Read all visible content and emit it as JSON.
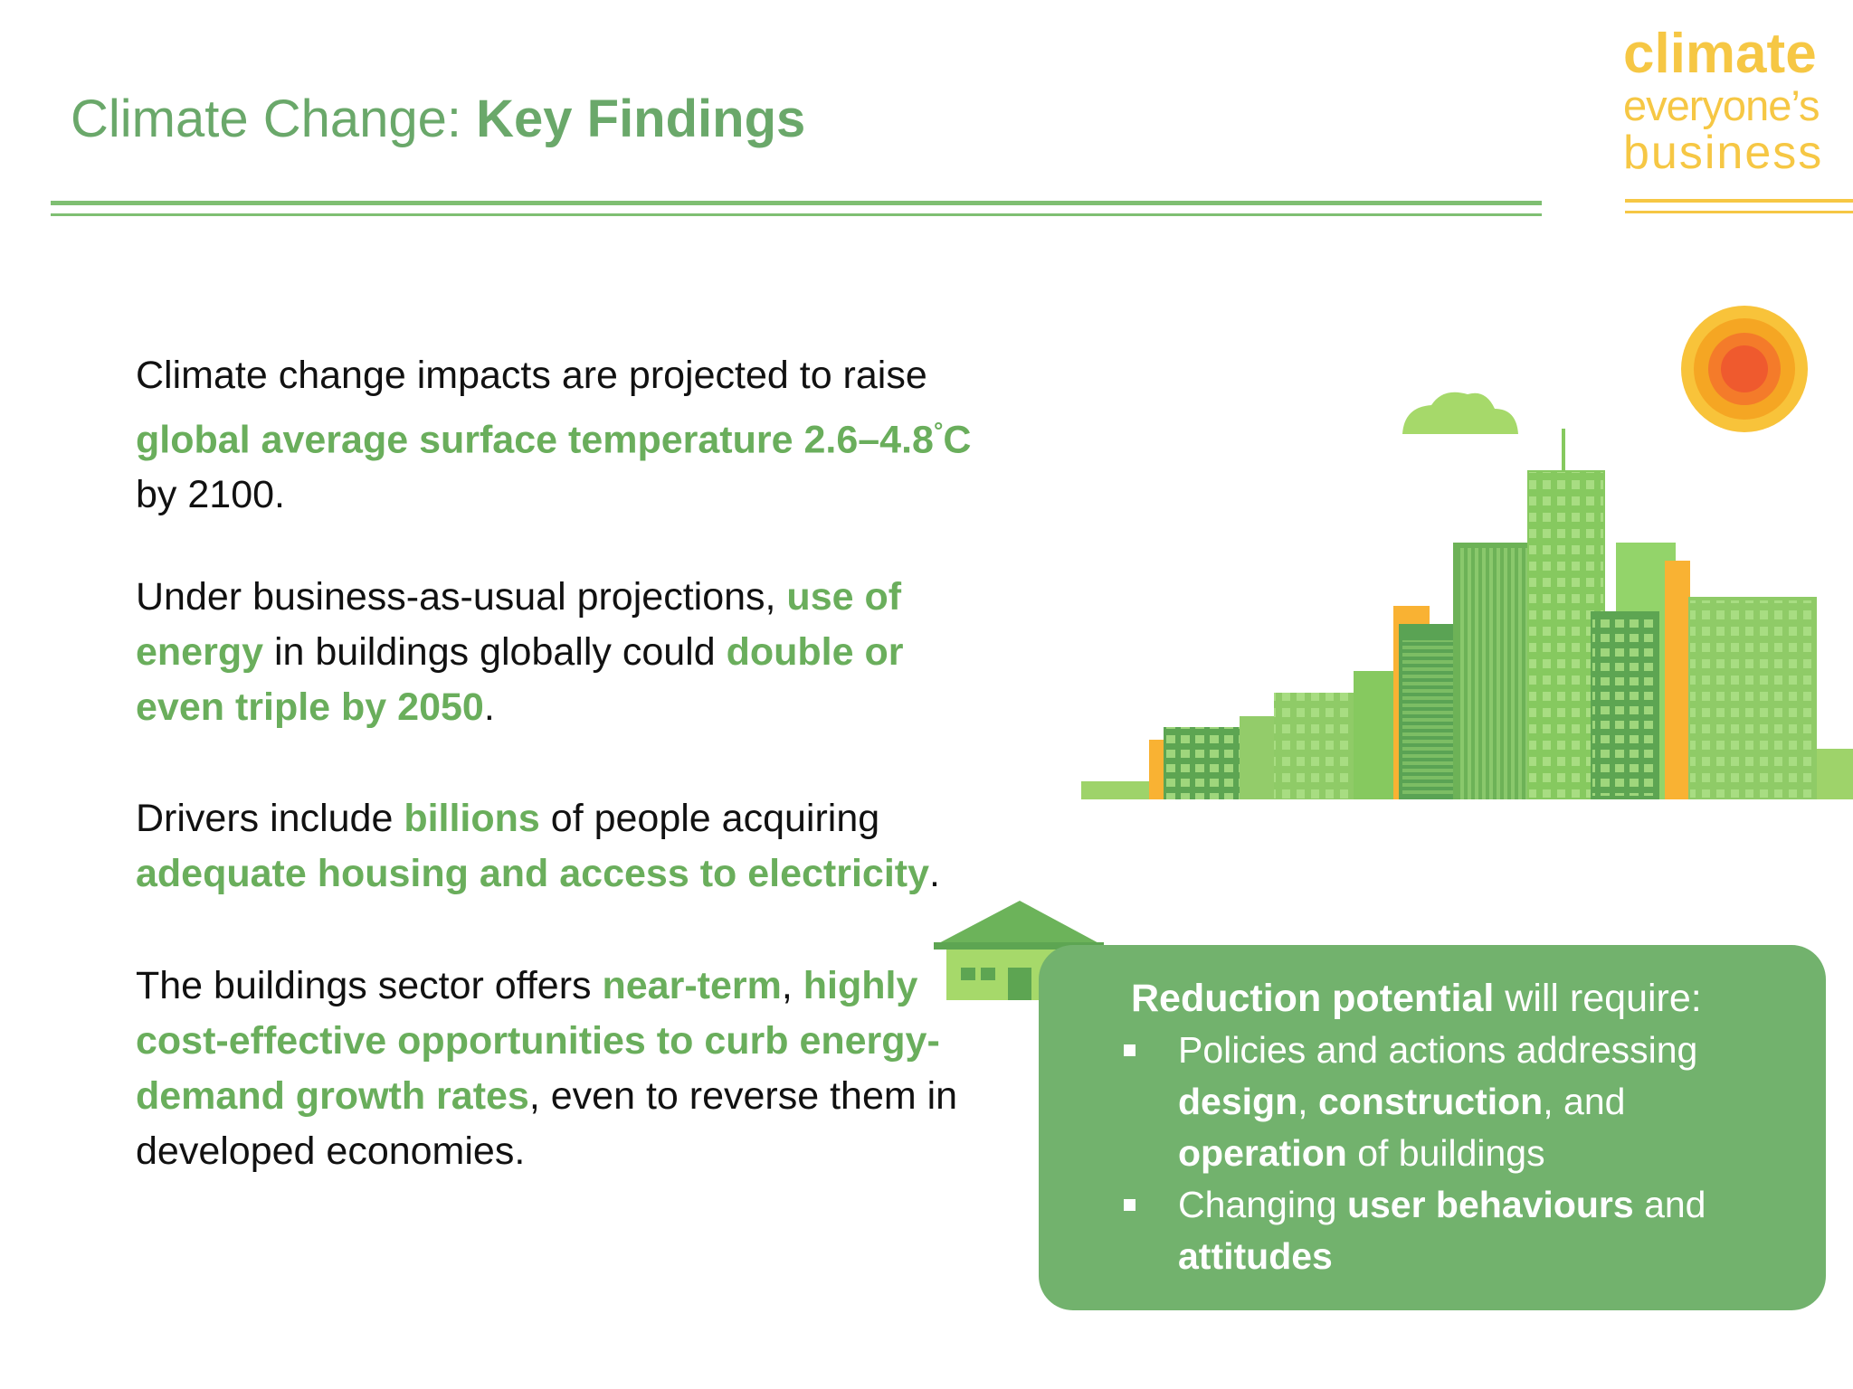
{
  "header": {
    "title_prefix": "Climate Change: ",
    "title_bold": "Key Findings"
  },
  "logo": {
    "line1": "climate",
    "line2": "everyone’s",
    "line3": "business"
  },
  "paragraphs": {
    "p1": {
      "a": "Climate change impacts are projected to raise ",
      "b": "global average surface temperature 2.6–4.8",
      "deg": "°",
      "c": "C",
      "d": " by 2100."
    },
    "p2": {
      "a": "Under business-as-usual projections, ",
      "b": "use of energy",
      "c": " in buildings globally could ",
      "d": "double or even triple by 2050",
      "e": "."
    },
    "p3": {
      "a": "Drivers include ",
      "b": "billions",
      "c": " of people acquiring ",
      "d": "adequate housing and access to electricity",
      "e": "."
    },
    "p4": {
      "a": "The buildings sector offers ",
      "b": "near-term",
      "c": ", ",
      "d": "highly cost-effective opportunities to curb energy-demand growth rates",
      "e": ", even to reverse them in developed economies."
    }
  },
  "callout": {
    "head_bold": "Reduction potential",
    "head_rest": " will require:",
    "bullet1": {
      "a": "Policies and actions addressing ",
      "b": "design",
      "c": ", ",
      "d": "construction",
      "e": ", and ",
      "f": "operation",
      "g": " of buildings"
    },
    "bullet2": {
      "a": "Changing ",
      "b": "user behaviours",
      "c": " and ",
      "d": "attitudes"
    }
  },
  "colors": {
    "green_text": "#6aae5c",
    "green_box": "#72b26d",
    "logo_yellow": "#f6c744",
    "sun_orange": "#f5a623"
  },
  "icons": [
    "sun-icon",
    "cloud-icon",
    "city-skyline-illustration",
    "house-icon"
  ]
}
